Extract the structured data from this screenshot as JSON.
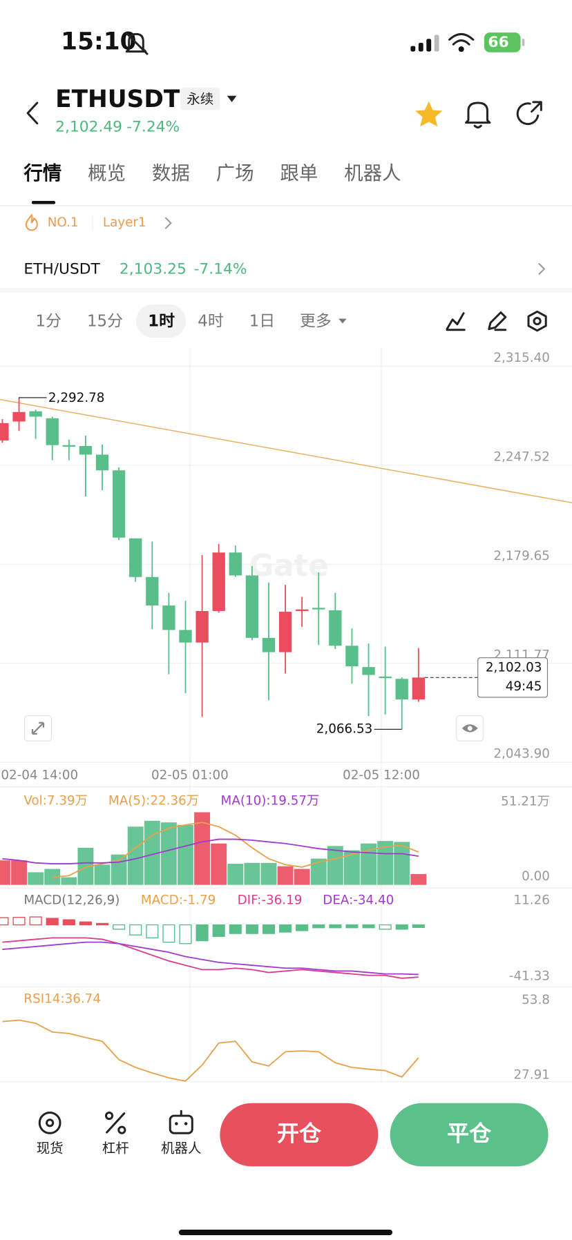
{
  "status_bar": {
    "time": "15:10",
    "battery": "66"
  },
  "header": {
    "symbol": "ETHUSDT",
    "contract": "永续",
    "price": "2,102.49",
    "change": "-7.24%"
  },
  "tabs": [
    "行情",
    "概览",
    "数据",
    "广场",
    "跟单",
    "机器人"
  ],
  "tags": [
    "NO.1",
    "Layer1"
  ],
  "spot": {
    "pair": "ETH/USDT",
    "price": "2,103.25",
    "change": "-7.14%"
  },
  "intervals": [
    "1分",
    "15分",
    "1时",
    "4时",
    "1日",
    "更多"
  ],
  "watermark": "Gate",
  "bottom_bar": {
    "items": [
      "现货",
      "杠杆",
      "机器人"
    ],
    "open": "开仓",
    "close": "平仓"
  },
  "chart_data": [
    {
      "type": "candlestick",
      "up_color": "#ea4d5e",
      "down_color": "#58bf8a",
      "grid": true,
      "ylim": [
        2043.9,
        2315.4
      ],
      "yticks": [
        {
          "value": 2315.4,
          "label": "2,315.40"
        },
        {
          "value": 2247.52,
          "label": "2,247.52"
        },
        {
          "value": 2179.65,
          "label": "2,179.65"
        },
        {
          "value": 2111.77,
          "label": "2,111.77"
        },
        {
          "value": 2043.9,
          "label": "2,043.90"
        }
      ],
      "x_labels": [
        "02-04 14:00",
        "02-05 01:00",
        "02-05 12:00"
      ],
      "open": [
        2264.5,
        2277.5,
        2284.5,
        2279.7,
        2261.3,
        2260.7,
        2254.8,
        2244.0,
        2197.4,
        2170.9,
        2151.4,
        2134.6,
        2126.0,
        2147.6,
        2187.7,
        2172.0,
        2129.2,
        2119.4,
        2147.6,
        2149.8,
        2148.1,
        2123.8,
        2109.2,
        2102.7,
        2101.1,
        2087.0
      ],
      "high": [
        2279.1,
        2292.78,
        2285.6,
        2280.8,
        2265.1,
        2267.8,
        2261.8,
        2246.1,
        2197.4,
        2195.2,
        2160.1,
        2154.6,
        2186.0,
        2193.6,
        2192.5,
        2178.4,
        2167.1,
        2165.5,
        2157.3,
        2174.1,
        2160.1,
        2135.7,
        2125.4,
        2123.2,
        2102.1,
        2122.2
      ],
      "low": [
        2262.9,
        2271.0,
        2265.6,
        2251.0,
        2251.0,
        2226.1,
        2230.4,
        2196.3,
        2167.6,
        2135.2,
        2104.3,
        2091.2,
        2075.1,
        2146.5,
        2170.9,
        2127.6,
        2086.4,
        2104.8,
        2136.8,
        2124.3,
        2121.6,
        2097.8,
        2075.6,
        2076.7,
        2066.53,
        2085.3
      ],
      "close": [
        2276.4,
        2284.0,
        2280.8,
        2261.3,
        2260.2,
        2254.8,
        2244.0,
        2197.9,
        2170.9,
        2151.4,
        2134.6,
        2126.0,
        2147.6,
        2187.7,
        2172.0,
        2129.2,
        2119.4,
        2147.1,
        2148.7,
        2148.7,
        2123.8,
        2109.7,
        2103.8,
        2101.6,
        2087.0,
        2102.03
      ],
      "high_marker": {
        "value": 2292.78,
        "label": "2,292.78"
      },
      "low_marker": {
        "value": 2066.53,
        "label": "2,066.53"
      },
      "last_price": {
        "value": 2102.03,
        "label": "2,102.03"
      },
      "countdown": "49:45",
      "trend_line": [
        2292.6,
        2221.8
      ],
      "trend_color": "#e9b060"
    },
    {
      "type": "bar",
      "up_color": "#ea4d5e",
      "down_color": "#58bf8a",
      "ylim": [
        0,
        51.21
      ],
      "yticks": [
        {
          "value": 51.21,
          "label": "51.21万"
        },
        {
          "value": 0,
          "label": "0.00"
        }
      ],
      "series": [
        {
          "name": "Vol:7.39万",
          "color": "#e9a04a",
          "values": [
            16.7,
            16.7,
            8.6,
            10.9,
            5.2,
            25.3,
            13.8,
            20.7,
            39.7,
            43.7,
            42.6,
            40.9,
            49.5,
            28.2,
            14.4,
            15.0,
            15.0,
            12.7,
            10.9,
            17.9,
            26.5,
            23.6,
            28.2,
            29.9,
            29.3,
            7.39
          ]
        },
        {
          "name": "MA(5):22.36万",
          "color": "#e9a04a",
          "values": [
            null,
            null,
            null,
            5.2,
            6.3,
            12.1,
            14.4,
            16.7,
            25.3,
            33.9,
            38.6,
            40.9,
            42.6,
            39.7,
            33.9,
            25.3,
            17.8,
            13.8,
            12.1,
            15.5,
            17.8,
            20.7,
            23.6,
            25.9,
            27.0,
            22.36
          ]
        },
        {
          "name": "MA(10):19.57万",
          "color": "#a03ad0",
          "values": [
            17.8,
            16.7,
            15.0,
            14.4,
            14.4,
            15.0,
            15.0,
            15.5,
            17.8,
            20.7,
            23.6,
            26.5,
            29.3,
            31.1,
            31.1,
            30.5,
            29.3,
            28.2,
            26.5,
            24.7,
            23.6,
            22.4,
            21.9,
            21.3,
            21.3,
            19.57
          ]
        }
      ]
    },
    {
      "type": "macd",
      "title": "MACD(12,26,9)",
      "up_color": "#ea4d5e",
      "down_color": "#58bf8a",
      "ylim": [
        -41.33,
        11.26
      ],
      "yticks": [
        11.26,
        -41.33
      ],
      "series": [
        {
          "name": "MACD:-1.79",
          "color": "#e9a04a",
          "values": [
            5.0,
            5.2,
            5.5,
            4.5,
            3.5,
            2.0,
            1.0,
            -3,
            -7,
            -9,
            -12,
            -13,
            -11,
            -8,
            -6,
            -6,
            -6,
            -5,
            -4,
            -2,
            -2,
            -2,
            -2,
            -3,
            -3,
            -1.79
          ]
        },
        {
          "name": "DIF:-36.19",
          "color": "#dc3d8e",
          "values": [
            -12,
            -11,
            -10,
            -9,
            -9,
            -9,
            -10,
            -13,
            -17,
            -21,
            -25,
            -28,
            -31,
            -31,
            -30,
            -31,
            -33,
            -32,
            -31,
            -32,
            -33,
            -34,
            -35,
            -35,
            -37,
            -36.19
          ]
        },
        {
          "name": "DEA:-34.40",
          "color": "#a03ad0",
          "values": [
            -17,
            -16,
            -15,
            -14,
            -13,
            -12,
            -12,
            -13,
            -15,
            -17,
            -19,
            -22,
            -24,
            -26,
            -27,
            -28,
            -29,
            -30,
            -30,
            -31,
            -32,
            -32,
            -33,
            -34,
            -34,
            -34.4
          ]
        }
      ]
    },
    {
      "type": "line",
      "ylim": [
        27.91,
        53.8
      ],
      "yticks": [
        53.8,
        27.91
      ],
      "series": [
        {
          "name": "RSI14:36.74",
          "color": "#e9a04a",
          "values": [
            49.2,
            49.7,
            48.6,
            45.6,
            45.1,
            43.7,
            42.4,
            36.1,
            33.4,
            31.5,
            29.8,
            28.7,
            34.2,
            41.8,
            42.4,
            35.3,
            33.9,
            38.8,
            39.1,
            38.8,
            35.0,
            33.4,
            32.8,
            32.3,
            30.1,
            36.74
          ]
        }
      ]
    }
  ]
}
